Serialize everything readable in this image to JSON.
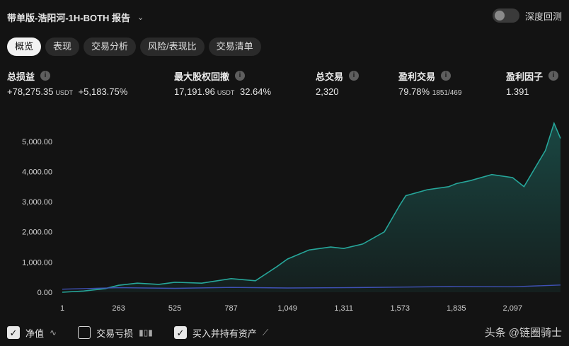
{
  "header": {
    "title": "带单版-浩阳河-1H-BOTH 报告"
  },
  "depth_toggle": {
    "label": "深度回测",
    "on": false
  },
  "tabs": [
    {
      "label": "概览",
      "active": true
    },
    {
      "label": "表现",
      "active": false
    },
    {
      "label": "交易分析",
      "active": false
    },
    {
      "label": "风险/表现比",
      "active": false
    },
    {
      "label": "交易清单",
      "active": false
    }
  ],
  "stats": {
    "total_pnl": {
      "label": "总损益",
      "value": "+78,275.35",
      "unit": "USDT",
      "pct": "+5,183.75%"
    },
    "max_drawdown": {
      "label": "最大股权回撤",
      "value": "17,191.96",
      "unit": "USDT",
      "pct": "32.64%"
    },
    "total_trades": {
      "label": "总交易",
      "value": "2,320"
    },
    "win_trades": {
      "label": "盈利交易",
      "value": "79.78%",
      "detail": "1851/469"
    },
    "profit_factor": {
      "label": "盈利因子",
      "value": "1.391"
    }
  },
  "colors": {
    "equity": "#26a69a",
    "buyhold": "#3f51b5",
    "accent_green": "#26a69a"
  },
  "chart_data": {
    "type": "area",
    "x_ticks": [
      "1",
      "263",
      "525",
      "787",
      "1,049",
      "1,311",
      "1,573",
      "1,835",
      "2,097"
    ],
    "y_ticks": [
      "0.00",
      "1,000.00",
      "2,000.00",
      "3,000.00",
      "4,000.00",
      "5,000.00"
    ],
    "ylim": [
      0,
      5700
    ],
    "xlim": [
      1,
      2320
    ],
    "series": [
      {
        "name": "净值",
        "x": [
          1,
          100,
          200,
          263,
          350,
          450,
          525,
          650,
          787,
          900,
          1000,
          1049,
          1150,
          1250,
          1311,
          1400,
          1500,
          1573,
          1600,
          1700,
          1800,
          1835,
          1900,
          2000,
          2097,
          2150,
          2250,
          2290,
          2320
        ],
        "values": [
          0,
          40,
          120,
          230,
          300,
          260,
          330,
          300,
          450,
          380,
          850,
          1100,
          1400,
          1500,
          1450,
          1600,
          2000,
          2900,
          3200,
          3400,
          3500,
          3600,
          3700,
          3900,
          3800,
          3500,
          4700,
          5600,
          5100
        ]
      },
      {
        "name": "买入并持有资产",
        "x": [
          1,
          263,
          525,
          787,
          1049,
          1311,
          1573,
          1835,
          2097,
          2320
        ],
        "values": [
          100,
          150,
          130,
          160,
          140,
          150,
          170,
          190,
          180,
          240
        ]
      }
    ]
  },
  "legend": [
    {
      "label": "净值",
      "checked": true,
      "icon": "line-wave-icon",
      "icon_glyph": "∿"
    },
    {
      "label": "交易亏损",
      "checked": false,
      "icon": "bar-chart-icon",
      "icon_glyph": "▮▯▮"
    },
    {
      "label": "买入并持有资产",
      "checked": true,
      "icon": "line-trend-icon",
      "icon_glyph": "⟋"
    }
  ],
  "watermark": "头条 @链圈骑士"
}
